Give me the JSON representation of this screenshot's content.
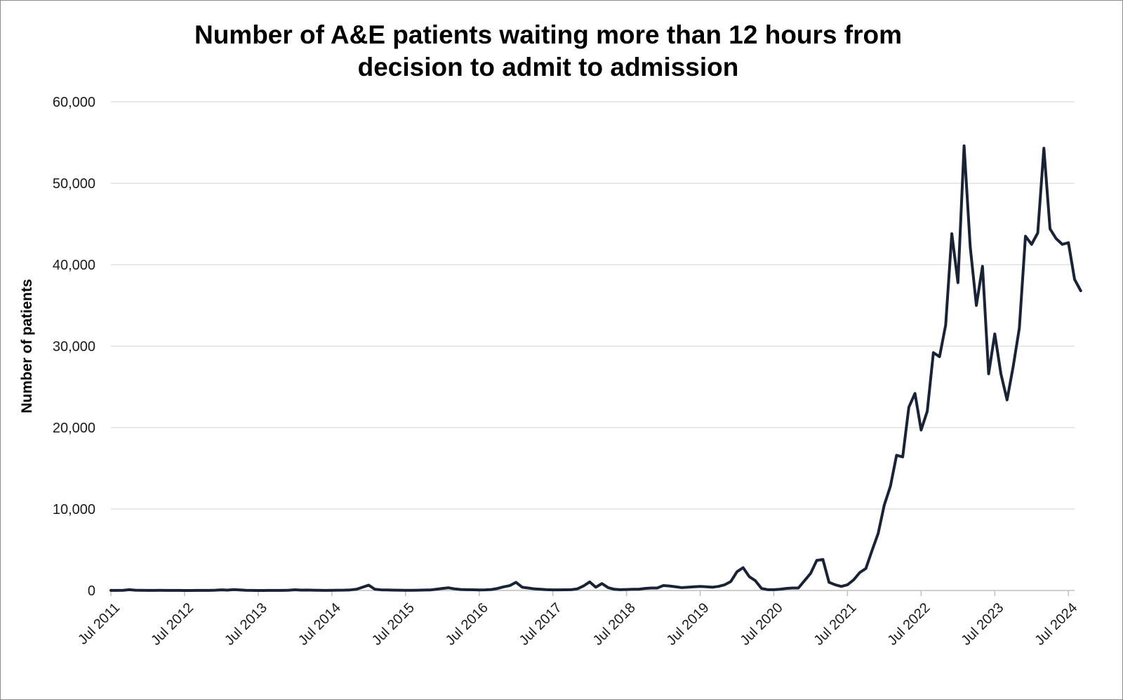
{
  "chart_data": {
    "type": "line",
    "title_line1": "Number of A&E patients waiting more than 12 hours from",
    "title_line2": "decision to admit to admission",
    "xlabel": "",
    "ylabel": "Number of patients",
    "ylim": [
      0,
      60000
    ],
    "yticks": [
      "0",
      "10,000",
      "20,000",
      "30,000",
      "40,000",
      "50,000",
      "60,000"
    ],
    "xlim": [
      "2011-07",
      "2024-08"
    ],
    "xticks": [
      "Jul 2011",
      "Jul 2012",
      "Jul 2013",
      "Jul 2014",
      "Jul 2015",
      "Jul 2016",
      "Jul 2017",
      "Jul 2018",
      "Jul 2019",
      "Jul 2020",
      "Jul 2021",
      "Jul 2022",
      "Jul 2023",
      "Jul 2024"
    ],
    "grid": true,
    "legend": "none",
    "line_color": "#1a2236",
    "series": [
      {
        "points": [
          [
            "2011-07",
            15
          ],
          [
            "2011-08",
            10
          ],
          [
            "2011-09",
            20
          ],
          [
            "2011-10",
            100
          ],
          [
            "2011-11",
            30
          ],
          [
            "2011-12",
            20
          ],
          [
            "2012-01",
            15
          ],
          [
            "2012-02",
            10
          ],
          [
            "2012-03",
            20
          ],
          [
            "2012-04",
            15
          ],
          [
            "2012-05",
            10
          ],
          [
            "2012-06",
            10
          ],
          [
            "2012-07",
            5
          ],
          [
            "2012-08",
            5
          ],
          [
            "2012-09",
            10
          ],
          [
            "2012-10",
            10
          ],
          [
            "2012-11",
            15
          ],
          [
            "2012-12",
            30
          ],
          [
            "2013-01",
            80
          ],
          [
            "2013-02",
            40
          ],
          [
            "2013-03",
            110
          ],
          [
            "2013-04",
            60
          ],
          [
            "2013-05",
            20
          ],
          [
            "2013-06",
            10
          ],
          [
            "2013-07",
            5
          ],
          [
            "2013-08",
            5
          ],
          [
            "2013-09",
            10
          ],
          [
            "2013-10",
            10
          ],
          [
            "2013-11",
            15
          ],
          [
            "2013-12",
            30
          ],
          [
            "2014-01",
            90
          ],
          [
            "2014-02",
            40
          ],
          [
            "2014-03",
            50
          ],
          [
            "2014-04",
            30
          ],
          [
            "2014-05",
            20
          ],
          [
            "2014-06",
            15
          ],
          [
            "2014-07",
            20
          ],
          [
            "2014-08",
            30
          ],
          [
            "2014-09",
            40
          ],
          [
            "2014-10",
            70
          ],
          [
            "2014-11",
            150
          ],
          [
            "2014-12",
            400
          ],
          [
            "2015-01",
            650
          ],
          [
            "2015-02",
            150
          ],
          [
            "2015-03",
            80
          ],
          [
            "2015-04",
            60
          ],
          [
            "2015-05",
            40
          ],
          [
            "2015-06",
            30
          ],
          [
            "2015-07",
            20
          ],
          [
            "2015-08",
            25
          ],
          [
            "2015-09",
            30
          ],
          [
            "2015-10",
            50
          ],
          [
            "2015-11",
            60
          ],
          [
            "2015-12",
            150
          ],
          [
            "2016-01",
            250
          ],
          [
            "2016-02",
            330
          ],
          [
            "2016-03",
            200
          ],
          [
            "2016-04",
            120
          ],
          [
            "2016-05",
            100
          ],
          [
            "2016-06",
            90
          ],
          [
            "2016-07",
            70
          ],
          [
            "2016-08",
            80
          ],
          [
            "2016-09",
            120
          ],
          [
            "2016-10",
            250
          ],
          [
            "2016-11",
            450
          ],
          [
            "2016-12",
            600
          ],
          [
            "2017-01",
            1000
          ],
          [
            "2017-02",
            400
          ],
          [
            "2017-03",
            300
          ],
          [
            "2017-04",
            200
          ],
          [
            "2017-05",
            150
          ],
          [
            "2017-06",
            100
          ],
          [
            "2017-07",
            80
          ],
          [
            "2017-08",
            80
          ],
          [
            "2017-09",
            90
          ],
          [
            "2017-10",
            100
          ],
          [
            "2017-11",
            200
          ],
          [
            "2017-12",
            550
          ],
          [
            "2018-01",
            1050
          ],
          [
            "2018-02",
            400
          ],
          [
            "2018-03",
            850
          ],
          [
            "2018-04",
            350
          ],
          [
            "2018-05",
            150
          ],
          [
            "2018-06",
            100
          ],
          [
            "2018-07",
            120
          ],
          [
            "2018-08",
            150
          ],
          [
            "2018-09",
            150
          ],
          [
            "2018-10",
            250
          ],
          [
            "2018-11",
            300
          ],
          [
            "2018-12",
            300
          ],
          [
            "2019-01",
            600
          ],
          [
            "2019-02",
            550
          ],
          [
            "2019-03",
            450
          ],
          [
            "2019-04",
            350
          ],
          [
            "2019-05",
            400
          ],
          [
            "2019-06",
            450
          ],
          [
            "2019-07",
            500
          ],
          [
            "2019-08",
            450
          ],
          [
            "2019-09",
            400
          ],
          [
            "2019-10",
            500
          ],
          [
            "2019-11",
            700
          ],
          [
            "2019-12",
            1100
          ],
          [
            "2020-01",
            2300
          ],
          [
            "2020-02",
            2800
          ],
          [
            "2020-03",
            1700
          ],
          [
            "2020-04",
            1200
          ],
          [
            "2020-05",
            250
          ],
          [
            "2020-06",
            100
          ],
          [
            "2020-07",
            100
          ],
          [
            "2020-08",
            150
          ],
          [
            "2020-09",
            250
          ],
          [
            "2020-10",
            300
          ],
          [
            "2020-11",
            300
          ],
          [
            "2020-12",
            1200
          ],
          [
            "2021-01",
            2100
          ],
          [
            "2021-02",
            3700
          ],
          [
            "2021-03",
            3800
          ],
          [
            "2021-04",
            1000
          ],
          [
            "2021-05",
            700
          ],
          [
            "2021-06",
            500
          ],
          [
            "2021-07",
            700
          ],
          [
            "2021-08",
            1300
          ],
          [
            "2021-09",
            2200
          ],
          [
            "2021-10",
            2700
          ],
          [
            "2021-11",
            4900
          ],
          [
            "2021-12",
            7000
          ],
          [
            "2022-01",
            10500
          ],
          [
            "2022-02",
            12800
          ],
          [
            "2022-03",
            16600
          ],
          [
            "2022-04",
            16400
          ],
          [
            "2022-05",
            22500
          ],
          [
            "2022-06",
            24200
          ],
          [
            "2022-07",
            19700
          ],
          [
            "2022-08",
            22000
          ],
          [
            "2022-09",
            29200
          ],
          [
            "2022-10",
            28700
          ],
          [
            "2022-11",
            32600
          ],
          [
            "2022-12",
            43800
          ],
          [
            "2023-01",
            37800
          ],
          [
            "2023-02",
            54600
          ],
          [
            "2023-03",
            42200
          ],
          [
            "2023-04",
            35000
          ],
          [
            "2023-05",
            39800
          ],
          [
            "2023-06",
            26600
          ],
          [
            "2023-07",
            31500
          ],
          [
            "2023-08",
            26600
          ],
          [
            "2023-09",
            23400
          ],
          [
            "2023-10",
            27500
          ],
          [
            "2023-11",
            32200
          ],
          [
            "2023-12",
            43500
          ],
          [
            "2024-01",
            42500
          ],
          [
            "2024-02",
            43900
          ],
          [
            "2024-03",
            54300
          ],
          [
            "2024-04",
            44400
          ],
          [
            "2024-05",
            43200
          ],
          [
            "2024-06",
            42500
          ],
          [
            "2024-07",
            42700
          ],
          [
            "2024-08",
            38200
          ],
          [
            "2024-09",
            36800
          ]
        ]
      }
    ]
  }
}
